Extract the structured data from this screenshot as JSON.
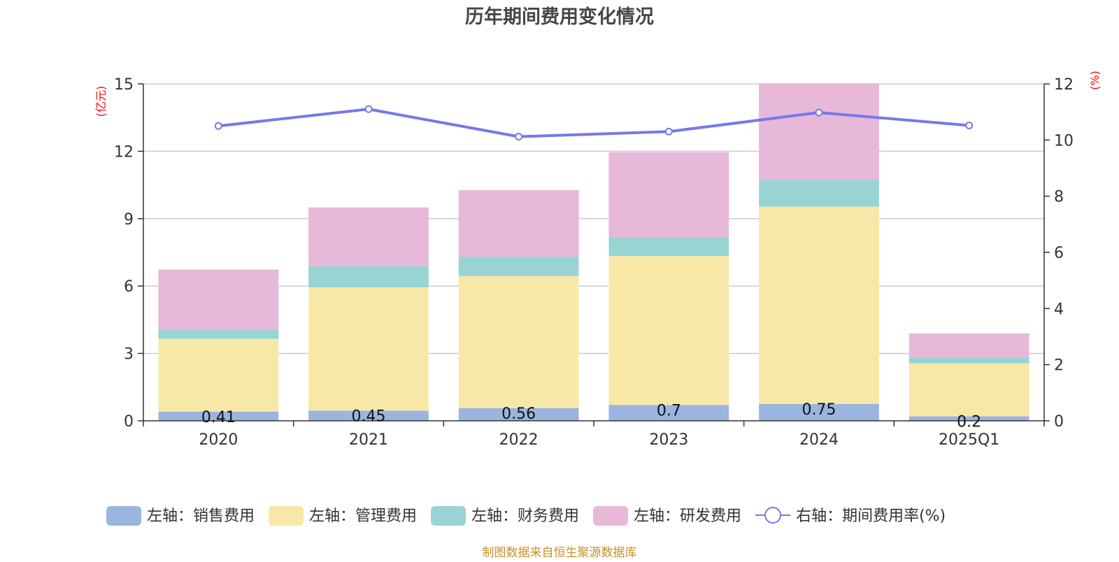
{
  "chart_data": {
    "type": "bar",
    "stacked": true,
    "title": "历年期间费用变化情况",
    "categories": [
      "2020",
      "2021",
      "2022",
      "2023",
      "2024",
      "2025Q1"
    ],
    "left_axis": {
      "unit": "(亿元)",
      "ylim": [
        0,
        15
      ],
      "ticks": [
        "0",
        "3",
        "6",
        "9",
        "12",
        "15"
      ],
      "tick_values": [
        0,
        3,
        6,
        9,
        12,
        15
      ]
    },
    "right_axis": {
      "unit": "(%)",
      "ylim": [
        0,
        12
      ],
      "ticks": [
        "0",
        "2",
        "4",
        "6",
        "8",
        "10",
        "12"
      ],
      "tick_values": [
        0,
        2,
        4,
        6,
        8,
        10,
        12
      ]
    },
    "series": [
      {
        "name": "左轴：销售费用",
        "type": "bar",
        "axis": "left",
        "color": "#9bb5e0",
        "values": [
          0.41,
          0.45,
          0.56,
          0.7,
          0.75,
          0.2
        ],
        "labels": [
          "0.41",
          "0.45",
          "0.56",
          "0.7",
          "0.75",
          "0.2"
        ]
      },
      {
        "name": "左轴：管理费用",
        "type": "bar",
        "axis": "left",
        "color": "#f8e8a8",
        "values": [
          3.24,
          5.49,
          5.89,
          6.64,
          8.78,
          2.36
        ]
      },
      {
        "name": "左轴：财务费用",
        "type": "bar",
        "axis": "left",
        "color": "#98d4d4",
        "values": [
          0.42,
          0.95,
          0.86,
          0.84,
          1.19,
          0.26
        ]
      },
      {
        "name": "左轴：研发费用",
        "type": "bar",
        "axis": "left",
        "color": "#e7b8d8",
        "values": [
          2.66,
          2.61,
          2.96,
          3.78,
          4.28,
          1.07
        ]
      },
      {
        "name": "右轴：期间费用率(%)",
        "type": "line",
        "axis": "right",
        "color": "#7878ea",
        "values": [
          10.5,
          11.1,
          10.12,
          10.3,
          10.98,
          10.52
        ]
      }
    ],
    "legend_position": "bottom",
    "grid": true
  },
  "source_note": "制图数据来自恒生聚源数据库"
}
